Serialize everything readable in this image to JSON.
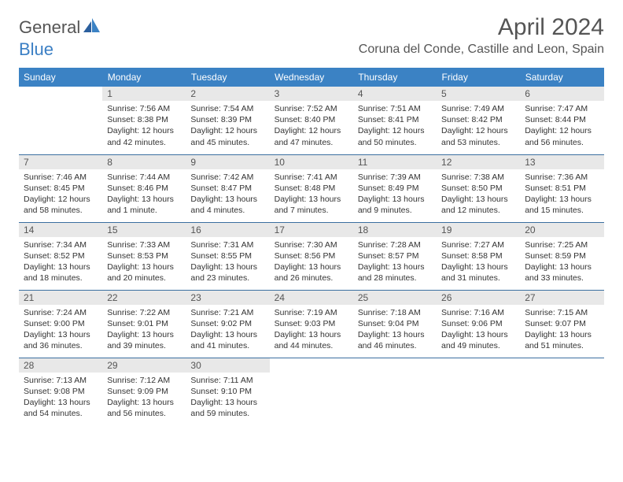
{
  "logo": {
    "text1": "General",
    "text2": "Blue"
  },
  "title": "April 2024",
  "location": "Coruna del Conde, Castille and Leon, Spain",
  "header_bg": "#3b82c4",
  "header_fg": "#ffffff",
  "daynum_bg": "#e8e8e8",
  "border_color": "#3b6fa0",
  "weekdays": [
    "Sunday",
    "Monday",
    "Tuesday",
    "Wednesday",
    "Thursday",
    "Friday",
    "Saturday"
  ],
  "weeks": [
    [
      {
        "day": "",
        "sunrise": "",
        "sunset": "",
        "daylight": ""
      },
      {
        "day": "1",
        "sunrise": "Sunrise: 7:56 AM",
        "sunset": "Sunset: 8:38 PM",
        "daylight": "Daylight: 12 hours and 42 minutes."
      },
      {
        "day": "2",
        "sunrise": "Sunrise: 7:54 AM",
        "sunset": "Sunset: 8:39 PM",
        "daylight": "Daylight: 12 hours and 45 minutes."
      },
      {
        "day": "3",
        "sunrise": "Sunrise: 7:52 AM",
        "sunset": "Sunset: 8:40 PM",
        "daylight": "Daylight: 12 hours and 47 minutes."
      },
      {
        "day": "4",
        "sunrise": "Sunrise: 7:51 AM",
        "sunset": "Sunset: 8:41 PM",
        "daylight": "Daylight: 12 hours and 50 minutes."
      },
      {
        "day": "5",
        "sunrise": "Sunrise: 7:49 AM",
        "sunset": "Sunset: 8:42 PM",
        "daylight": "Daylight: 12 hours and 53 minutes."
      },
      {
        "day": "6",
        "sunrise": "Sunrise: 7:47 AM",
        "sunset": "Sunset: 8:44 PM",
        "daylight": "Daylight: 12 hours and 56 minutes."
      }
    ],
    [
      {
        "day": "7",
        "sunrise": "Sunrise: 7:46 AM",
        "sunset": "Sunset: 8:45 PM",
        "daylight": "Daylight: 12 hours and 58 minutes."
      },
      {
        "day": "8",
        "sunrise": "Sunrise: 7:44 AM",
        "sunset": "Sunset: 8:46 PM",
        "daylight": "Daylight: 13 hours and 1 minute."
      },
      {
        "day": "9",
        "sunrise": "Sunrise: 7:42 AM",
        "sunset": "Sunset: 8:47 PM",
        "daylight": "Daylight: 13 hours and 4 minutes."
      },
      {
        "day": "10",
        "sunrise": "Sunrise: 7:41 AM",
        "sunset": "Sunset: 8:48 PM",
        "daylight": "Daylight: 13 hours and 7 minutes."
      },
      {
        "day": "11",
        "sunrise": "Sunrise: 7:39 AM",
        "sunset": "Sunset: 8:49 PM",
        "daylight": "Daylight: 13 hours and 9 minutes."
      },
      {
        "day": "12",
        "sunrise": "Sunrise: 7:38 AM",
        "sunset": "Sunset: 8:50 PM",
        "daylight": "Daylight: 13 hours and 12 minutes."
      },
      {
        "day": "13",
        "sunrise": "Sunrise: 7:36 AM",
        "sunset": "Sunset: 8:51 PM",
        "daylight": "Daylight: 13 hours and 15 minutes."
      }
    ],
    [
      {
        "day": "14",
        "sunrise": "Sunrise: 7:34 AM",
        "sunset": "Sunset: 8:52 PM",
        "daylight": "Daylight: 13 hours and 18 minutes."
      },
      {
        "day": "15",
        "sunrise": "Sunrise: 7:33 AM",
        "sunset": "Sunset: 8:53 PM",
        "daylight": "Daylight: 13 hours and 20 minutes."
      },
      {
        "day": "16",
        "sunrise": "Sunrise: 7:31 AM",
        "sunset": "Sunset: 8:55 PM",
        "daylight": "Daylight: 13 hours and 23 minutes."
      },
      {
        "day": "17",
        "sunrise": "Sunrise: 7:30 AM",
        "sunset": "Sunset: 8:56 PM",
        "daylight": "Daylight: 13 hours and 26 minutes."
      },
      {
        "day": "18",
        "sunrise": "Sunrise: 7:28 AM",
        "sunset": "Sunset: 8:57 PM",
        "daylight": "Daylight: 13 hours and 28 minutes."
      },
      {
        "day": "19",
        "sunrise": "Sunrise: 7:27 AM",
        "sunset": "Sunset: 8:58 PM",
        "daylight": "Daylight: 13 hours and 31 minutes."
      },
      {
        "day": "20",
        "sunrise": "Sunrise: 7:25 AM",
        "sunset": "Sunset: 8:59 PM",
        "daylight": "Daylight: 13 hours and 33 minutes."
      }
    ],
    [
      {
        "day": "21",
        "sunrise": "Sunrise: 7:24 AM",
        "sunset": "Sunset: 9:00 PM",
        "daylight": "Daylight: 13 hours and 36 minutes."
      },
      {
        "day": "22",
        "sunrise": "Sunrise: 7:22 AM",
        "sunset": "Sunset: 9:01 PM",
        "daylight": "Daylight: 13 hours and 39 minutes."
      },
      {
        "day": "23",
        "sunrise": "Sunrise: 7:21 AM",
        "sunset": "Sunset: 9:02 PM",
        "daylight": "Daylight: 13 hours and 41 minutes."
      },
      {
        "day": "24",
        "sunrise": "Sunrise: 7:19 AM",
        "sunset": "Sunset: 9:03 PM",
        "daylight": "Daylight: 13 hours and 44 minutes."
      },
      {
        "day": "25",
        "sunrise": "Sunrise: 7:18 AM",
        "sunset": "Sunset: 9:04 PM",
        "daylight": "Daylight: 13 hours and 46 minutes."
      },
      {
        "day": "26",
        "sunrise": "Sunrise: 7:16 AM",
        "sunset": "Sunset: 9:06 PM",
        "daylight": "Daylight: 13 hours and 49 minutes."
      },
      {
        "day": "27",
        "sunrise": "Sunrise: 7:15 AM",
        "sunset": "Sunset: 9:07 PM",
        "daylight": "Daylight: 13 hours and 51 minutes."
      }
    ],
    [
      {
        "day": "28",
        "sunrise": "Sunrise: 7:13 AM",
        "sunset": "Sunset: 9:08 PM",
        "daylight": "Daylight: 13 hours and 54 minutes."
      },
      {
        "day": "29",
        "sunrise": "Sunrise: 7:12 AM",
        "sunset": "Sunset: 9:09 PM",
        "daylight": "Daylight: 13 hours and 56 minutes."
      },
      {
        "day": "30",
        "sunrise": "Sunrise: 7:11 AM",
        "sunset": "Sunset: 9:10 PM",
        "daylight": "Daylight: 13 hours and 59 minutes."
      },
      {
        "day": "",
        "sunrise": "",
        "sunset": "",
        "daylight": ""
      },
      {
        "day": "",
        "sunrise": "",
        "sunset": "",
        "daylight": ""
      },
      {
        "day": "",
        "sunrise": "",
        "sunset": "",
        "daylight": ""
      },
      {
        "day": "",
        "sunrise": "",
        "sunset": "",
        "daylight": ""
      }
    ]
  ]
}
